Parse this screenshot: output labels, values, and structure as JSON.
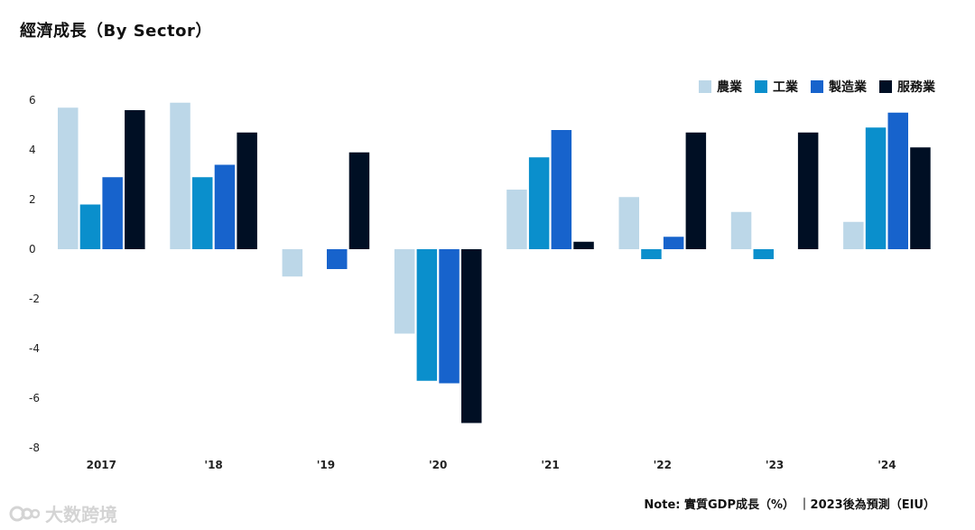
{
  "colors": [
    "#bcd7e8",
    "#0a8fcc",
    "#1763cc",
    "#000f24"
  ],
  "chart_data": {
    "type": "bar",
    "title": "經濟成長（By Sector）",
    "categories": [
      "2017",
      "'18",
      "'19",
      "'20",
      "'21",
      "'22",
      "'23",
      "'24"
    ],
    "series": [
      {
        "name": "農業",
        "values": [
          5.7,
          5.9,
          -1.1,
          -3.4,
          2.4,
          2.1,
          1.5,
          1.1
        ]
      },
      {
        "name": "工業",
        "values": [
          1.8,
          2.9,
          0,
          -5.3,
          3.7,
          -0.4,
          -0.4,
          4.9
        ]
      },
      {
        "name": "製造業",
        "values": [
          2.9,
          3.4,
          -0.8,
          -5.4,
          4.8,
          0.5,
          0,
          5.5
        ]
      },
      {
        "name": "服務業",
        "values": [
          5.6,
          4.7,
          3.9,
          -7.0,
          0.3,
          4.7,
          4.7,
          4.1
        ]
      }
    ],
    "ylim": [
      -8,
      6
    ],
    "yticks": [
      6,
      4,
      2,
      0,
      -2,
      -4,
      -6,
      -8
    ],
    "grid": false,
    "legend": "top-right",
    "note": "Note: 實質GDP成長（%） ｜2023後為預測（EIU）"
  },
  "watermark": {
    "text": "大数跨境"
  }
}
